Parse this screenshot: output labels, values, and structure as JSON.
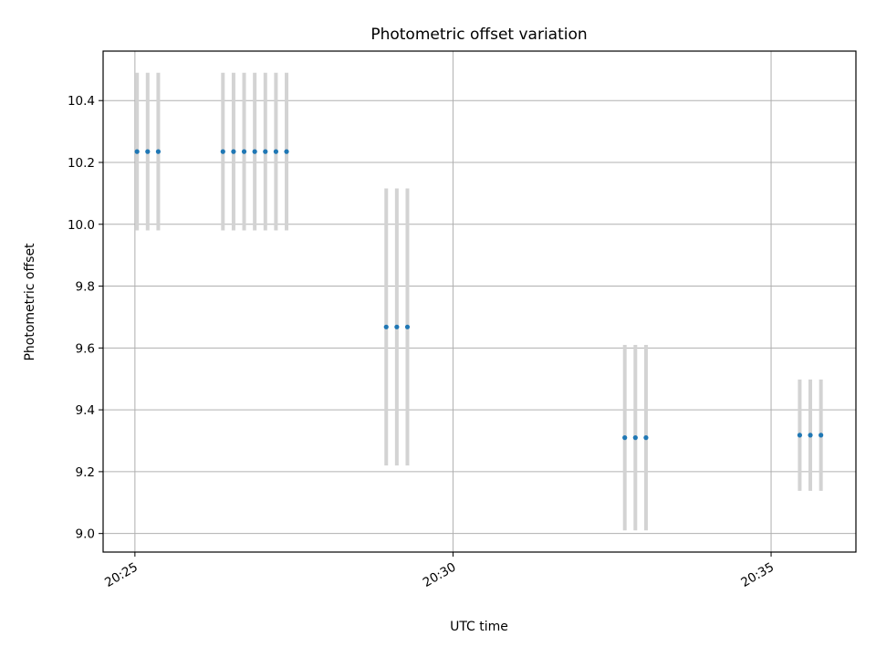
{
  "chart_data": {
    "type": "scatter",
    "title": "Photometric offset variation",
    "xlabel": "UTC time",
    "ylabel": "Photometric offset",
    "x_ticks": [
      "20:25",
      "20:30",
      "20:35"
    ],
    "y_ticks": [
      "9.0",
      "9.2",
      "9.4",
      "9.6",
      "9.8",
      "10.0",
      "10.2",
      "10.4"
    ],
    "xlim": [
      "20:24:30",
      "20:36:20"
    ],
    "ylim": [
      8.94,
      10.56
    ],
    "grid": true,
    "colors": {
      "point": "#1f77b4",
      "errorbar": "#d3d3d3",
      "grid": "#b0b0b0"
    },
    "series": [
      {
        "x": [
          "20:25:02",
          "20:25:12",
          "20:25:22",
          "20:26:23",
          "20:26:33",
          "20:26:43",
          "20:26:53",
          "20:27:03",
          "20:27:13",
          "20:27:23",
          "20:28:57",
          "20:29:07",
          "20:29:17",
          "20:32:42",
          "20:32:52",
          "20:33:02",
          "20:35:27",
          "20:35:37",
          "20:35:47"
        ],
        "y": [
          10.235,
          10.235,
          10.235,
          10.235,
          10.235,
          10.235,
          10.235,
          10.235,
          10.235,
          10.235,
          9.668,
          9.668,
          9.668,
          9.31,
          9.31,
          9.31,
          9.318,
          9.318,
          9.318
        ],
        "err": [
          0.255,
          0.255,
          0.255,
          0.255,
          0.255,
          0.255,
          0.255,
          0.255,
          0.255,
          0.255,
          0.448,
          0.448,
          0.448,
          0.3,
          0.3,
          0.3,
          0.18,
          0.18,
          0.18
        ]
      }
    ]
  }
}
